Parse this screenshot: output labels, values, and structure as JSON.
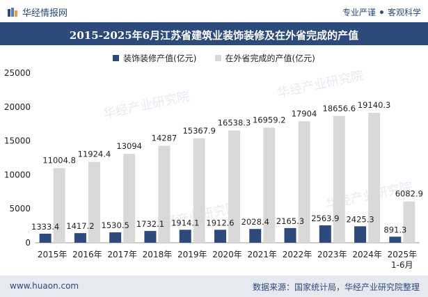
{
  "header": {
    "brand": "华经情报网",
    "tag_left": "专业严谨",
    "tag_right": "客观科学"
  },
  "footer": {
    "website": "www.huaon.com",
    "source": "数据来源：国家统计局，华经产业研究院整理"
  },
  "watermark": "华经产业研究院",
  "colors": {
    "series1": "#2c4a7c",
    "series2": "#d9d9d9",
    "title_bg": "#2c4a7c"
  },
  "chart_data": {
    "type": "bar",
    "title": "2015-2025年6月江苏省建筑业装饰装修及在外省完成的产值",
    "categories": [
      "2015年",
      "2016年",
      "2017年",
      "2018年",
      "2019年",
      "2020年",
      "2021年",
      "2022年",
      "2023年",
      "2024年",
      "2025年\n1-6月"
    ],
    "series": [
      {
        "name": "装饰装修产值(亿元)",
        "values": [
          1333.4,
          1417.2,
          1530.5,
          1732.1,
          1914.1,
          1912.6,
          2028.4,
          2165.3,
          2563.9,
          2425.3,
          891.3
        ]
      },
      {
        "name": "在外省完成的产值(亿元)",
        "values": [
          11004.8,
          11924.4,
          13094,
          14287,
          15367.9,
          16538.3,
          16959.2,
          17904,
          18656.6,
          19140.3,
          6082.9
        ]
      }
    ],
    "ylim": [
      0,
      25000
    ],
    "yticks": [
      0,
      5000,
      10000,
      15000,
      20000,
      25000
    ],
    "legend_position": "top-center",
    "grid": false
  }
}
